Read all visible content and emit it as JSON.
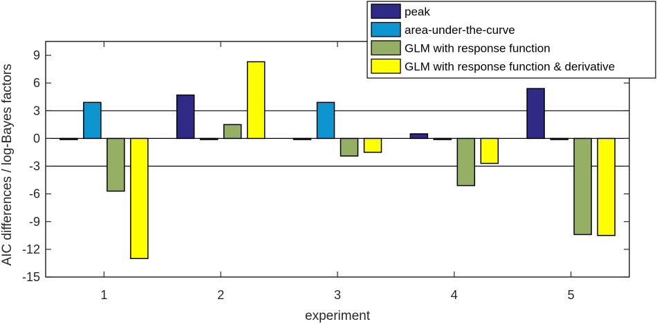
{
  "chart_data": {
    "type": "bar",
    "xlabel": "experiment",
    "ylabel": "AIC differences / log-Bayes factors",
    "categories": [
      "1",
      "2",
      "3",
      "4",
      "5"
    ],
    "yticks": [
      "-15",
      "-12",
      "-9",
      "-6",
      "-3",
      "0",
      "3",
      "6",
      "9"
    ],
    "ylim": [
      -15,
      10.5
    ],
    "reference_lines": [
      -3,
      3
    ],
    "legend_position": "top-right",
    "series": [
      {
        "name": "peak",
        "color": "#2e2a85",
        "values": [
          0,
          4.7,
          0,
          0.5,
          5.4
        ]
      },
      {
        "name": "area-under-the-curve",
        "color": "#0e94cf",
        "values": [
          3.9,
          0,
          3.9,
          0,
          0
        ]
      },
      {
        "name": "GLM with response function",
        "color": "#95b064",
        "values": [
          -5.7,
          1.5,
          -1.9,
          -5.1,
          -10.4
        ]
      },
      {
        "name": "GLM with response function & derivative",
        "color": "#ffff00",
        "values": [
          -13.0,
          8.3,
          -1.5,
          -2.7,
          -10.5
        ]
      }
    ]
  }
}
